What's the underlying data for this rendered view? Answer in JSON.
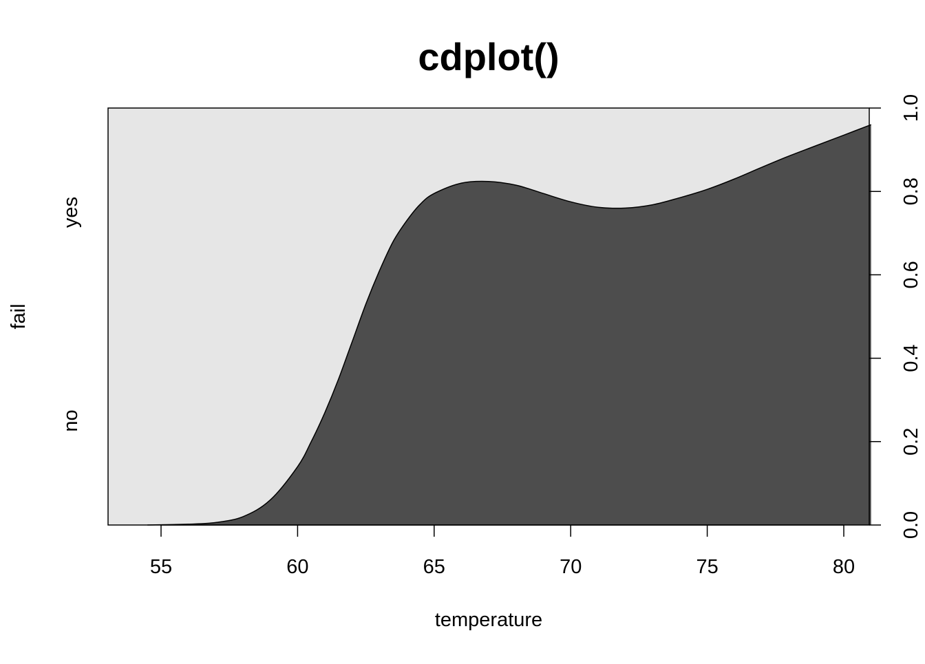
{
  "chart_data": {
    "type": "area",
    "title": "cdplot()",
    "xlabel": "temperature",
    "ylabel": "fail",
    "x_ticks": [
      "55",
      "60",
      "65",
      "70",
      "75",
      "80"
    ],
    "y_ticks_right": [
      "0.0",
      "0.2",
      "0.4",
      "0.6",
      "0.8",
      "1.0"
    ],
    "categories": [
      "no",
      "yes"
    ],
    "xlim": [
      53.1,
      81.0
    ],
    "ylim": [
      0,
      1
    ],
    "grid": false,
    "series": [
      {
        "fill": "#4d4d4d",
        "x": [
          54.5,
          56.0,
          57.0,
          58.0,
          59.0,
          60.0,
          60.5,
          61.0,
          61.5,
          62.0,
          62.5,
          63.0,
          63.5,
          64.0,
          64.5,
          65.0,
          66.0,
          67.0,
          68.0,
          69.0,
          70.0,
          71.0,
          72.0,
          73.0,
          74.0,
          75.0,
          76.0,
          77.0,
          78.0,
          79.0,
          80.0,
          81.0
        ],
        "y": [
          0.0,
          0.002,
          0.006,
          0.02,
          0.06,
          0.14,
          0.2,
          0.27,
          0.35,
          0.44,
          0.53,
          0.61,
          0.68,
          0.73,
          0.77,
          0.795,
          0.82,
          0.824,
          0.815,
          0.795,
          0.775,
          0.762,
          0.76,
          0.768,
          0.785,
          0.805,
          0.83,
          0.858,
          0.885,
          0.91,
          0.935,
          0.96
        ]
      },
      {
        "fill": "#e6e6e6"
      }
    ]
  }
}
